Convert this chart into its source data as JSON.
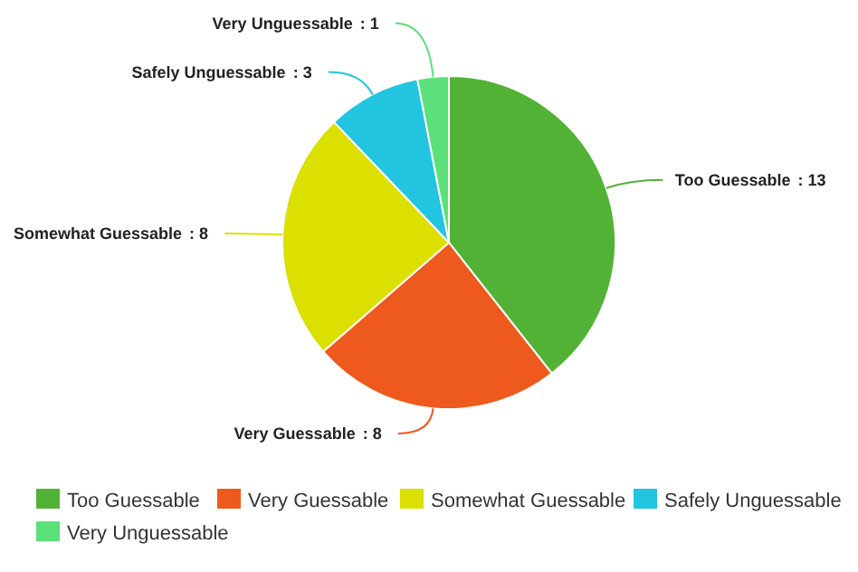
{
  "chart_data": {
    "type": "pie",
    "categories": [
      "Too Guessable",
      "Very Guessable",
      "Somewhat Guessable",
      "Safely Unguessable",
      "Very Unguessable"
    ],
    "values": [
      13,
      8,
      8,
      3,
      1
    ],
    "value_labels": [
      ": 13",
      ": 8",
      ": 8",
      ": 3",
      ": 1"
    ],
    "colors": [
      "#52b236",
      "#ee5a1e",
      "#dce000",
      "#22c5e0",
      "#5ce07a"
    ],
    "legend": "bottom"
  }
}
